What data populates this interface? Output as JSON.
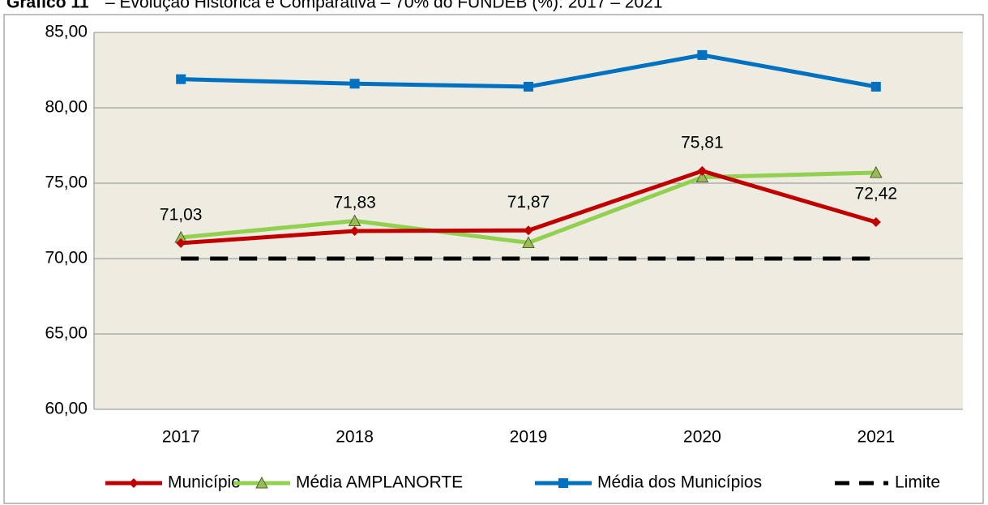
{
  "chart_data": {
    "type": "line",
    "title_label": "Gráfico 11",
    "title": "– Evolução Histórica e Comparativa – 70% do FUNDEB (%): 2017 – 2021",
    "categories": [
      "2017",
      "2018",
      "2019",
      "2020",
      "2021"
    ],
    "series": [
      {
        "name": "Município",
        "color": "#c00000",
        "marker": "diamond",
        "values": [
          71.03,
          71.83,
          71.87,
          75.81,
          72.42
        ],
        "value_labels": [
          "71,03",
          "71,83",
          "71,87",
          "75,81",
          "72,42"
        ]
      },
      {
        "name": "Média AMPLANORTE",
        "color": "#92d050",
        "marker": "triangle",
        "values": [
          71.4,
          72.5,
          71.05,
          75.4,
          75.7
        ]
      },
      {
        "name": "Média dos Municípios",
        "color": "#0070c0",
        "marker": "square",
        "values": [
          81.9,
          81.6,
          81.4,
          83.5,
          81.4
        ]
      },
      {
        "name": "Limite",
        "color": "#000000",
        "dashed": true,
        "values": [
          70,
          70,
          70,
          70,
          70
        ]
      }
    ],
    "ylim": [
      60,
      85
    ],
    "yticks": [
      {
        "value": 60,
        "label": "60,00"
      },
      {
        "value": 65,
        "label": "65,00"
      },
      {
        "value": 70,
        "label": "70,00"
      },
      {
        "value": 75,
        "label": "75,00"
      },
      {
        "value": 80,
        "label": "80,00"
      },
      {
        "value": 85,
        "label": "85,00"
      }
    ],
    "grid": true,
    "legend": "bottom"
  }
}
